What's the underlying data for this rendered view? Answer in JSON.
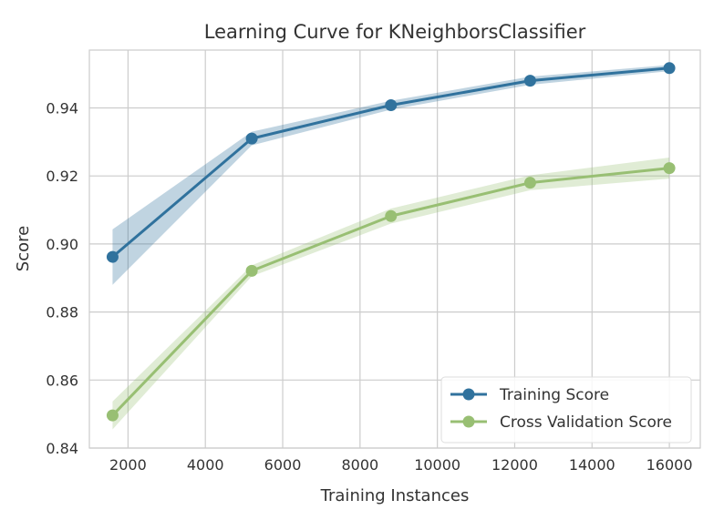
{
  "chart_data": {
    "type": "line",
    "title": "Learning Curve for KNeighborsClassifier",
    "xlabel": "Training Instances",
    "ylabel": "Score",
    "xlim": [
      1000,
      16800
    ],
    "ylim": [
      0.84,
      0.957
    ],
    "xticks": [
      2000,
      4000,
      6000,
      8000,
      10000,
      12000,
      14000,
      16000
    ],
    "yticks": [
      0.84,
      0.86,
      0.88,
      0.9,
      0.92,
      0.94
    ],
    "xtick_labels": [
      "2000",
      "4000",
      "6000",
      "8000",
      "10000",
      "12000",
      "14000",
      "16000"
    ],
    "ytick_labels": [
      "0.84",
      "0.86",
      "0.88",
      "0.90",
      "0.92",
      "0.94"
    ],
    "grid": true,
    "legend_position": "lower-right",
    "x": [
      1600,
      5200,
      8800,
      12400,
      16000
    ],
    "series": [
      {
        "name": "Training Score",
        "color": "#30729d",
        "values": [
          0.8962,
          0.931,
          0.9408,
          0.948,
          0.9517
        ],
        "band_low": [
          0.888,
          0.929,
          0.9395,
          0.9468,
          0.9508
        ],
        "band_high": [
          0.9043,
          0.933,
          0.9421,
          0.9492,
          0.9526
        ]
      },
      {
        "name": "Cross Validation Score",
        "color": "#98bf73",
        "values": [
          0.8496,
          0.8921,
          0.9082,
          0.918,
          0.9223
        ],
        "band_low": [
          0.8455,
          0.8905,
          0.906,
          0.9158,
          0.9192
        ],
        "band_high": [
          0.8537,
          0.8937,
          0.9104,
          0.9202,
          0.9254
        ]
      }
    ]
  }
}
